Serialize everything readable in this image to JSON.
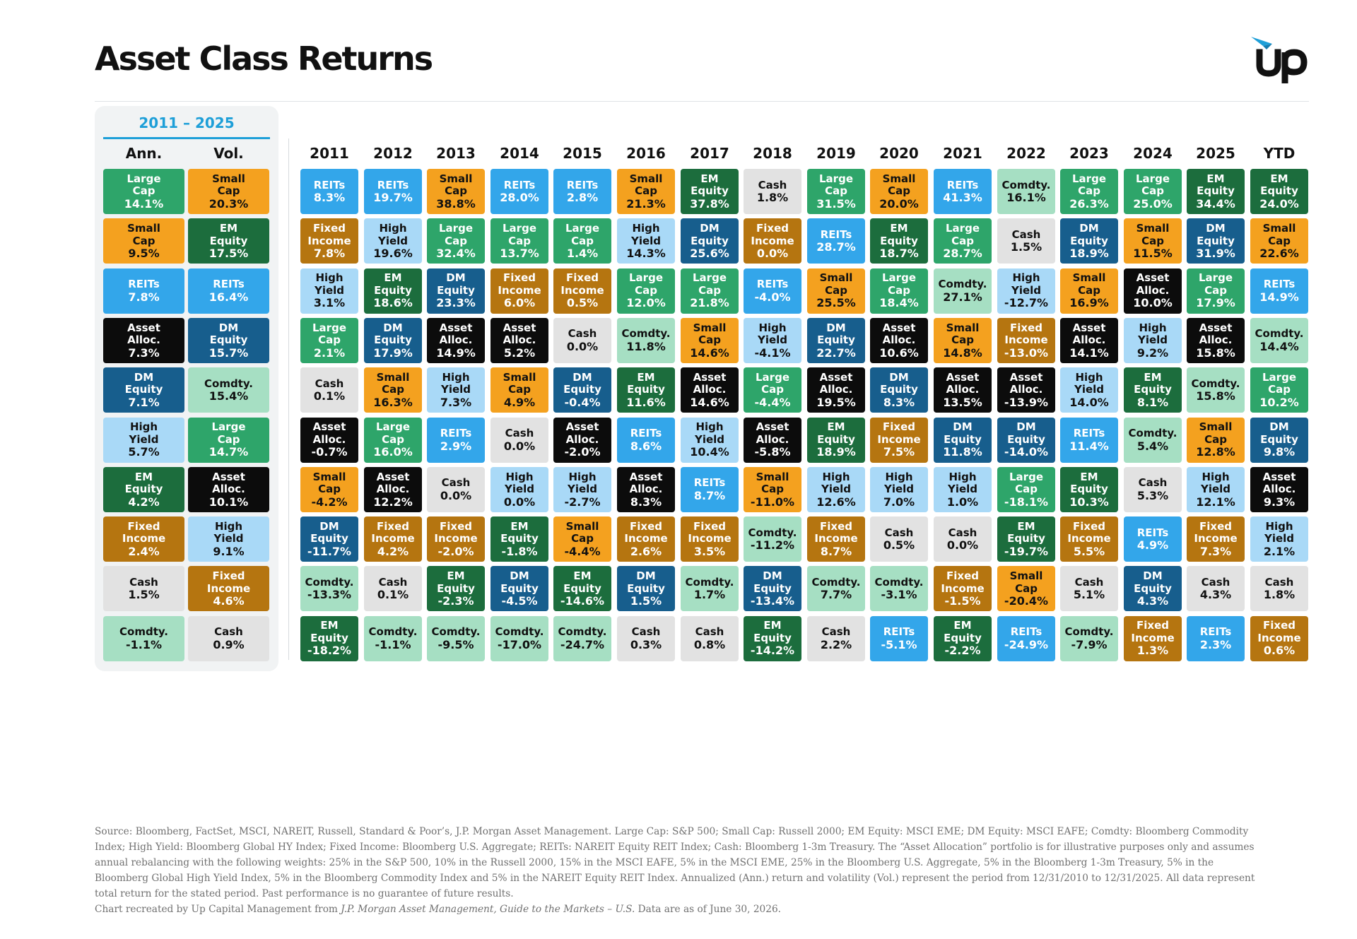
{
  "title": "Asset Class Returns",
  "period_label": "2011 – 2025",
  "colors": {
    "Large Cap": "#2ea56a",
    "Small Cap": "#f4a11f",
    "EM Equity": "#1c6d3d",
    "DM Equity": "#175e8d",
    "Comdty.": "#a6dfc3",
    "High Yield": "#a9d9f7",
    "Fixed Income": "#b57510",
    "REITs": "#33a6ea",
    "Cash": "#e2e2e2",
    "Asset Alloc.": "#0c0c0c"
  },
  "text_colors": {
    "Large Cap": "#ffffff",
    "Small Cap": "#111111",
    "EM Equity": "#ffffff",
    "DM Equity": "#ffffff",
    "Comdty.": "#111111",
    "High Yield": "#111111",
    "Fixed Income": "#ffffff",
    "REITs": "#ffffff",
    "Cash": "#111111",
    "Asset Alloc.": "#ffffff"
  },
  "chart_data": {
    "type": "table",
    "summary_headers": [
      "Ann.",
      "Vol."
    ],
    "summary": {
      "Ann.": [
        {
          "asset": "Large Cap",
          "value": "14.1%"
        },
        {
          "asset": "Small Cap",
          "value": "9.5%"
        },
        {
          "asset": "REITs",
          "value": "7.8%"
        },
        {
          "asset": "Asset Alloc.",
          "value": "7.3%"
        },
        {
          "asset": "DM Equity",
          "value": "7.1%"
        },
        {
          "asset": "High Yield",
          "value": "5.7%"
        },
        {
          "asset": "EM Equity",
          "value": "4.2%"
        },
        {
          "asset": "Fixed Income",
          "value": "2.4%"
        },
        {
          "asset": "Cash",
          "value": "1.5%"
        },
        {
          "asset": "Comdty.",
          "value": "-1.1%"
        }
      ],
      "Vol.": [
        {
          "asset": "Small Cap",
          "value": "20.3%"
        },
        {
          "asset": "EM Equity",
          "value": "17.5%"
        },
        {
          "asset": "REITs",
          "value": "16.4%"
        },
        {
          "asset": "DM Equity",
          "value": "15.7%"
        },
        {
          "asset": "Comdty.",
          "value": "15.4%"
        },
        {
          "asset": "Large Cap",
          "value": "14.7%"
        },
        {
          "asset": "Asset Alloc.",
          "value": "10.1%"
        },
        {
          "asset": "High Yield",
          "value": "9.1%"
        },
        {
          "asset": "Fixed Income",
          "value": "4.6%"
        },
        {
          "asset": "Cash",
          "value": "0.9%"
        }
      ]
    },
    "years": [
      {
        "label": "2011",
        "cells": [
          {
            "asset": "REITs",
            "value": "8.3%"
          },
          {
            "asset": "Fixed Income",
            "value": "7.8%"
          },
          {
            "asset": "High Yield",
            "value": "3.1%"
          },
          {
            "asset": "Large Cap",
            "value": "2.1%"
          },
          {
            "asset": "Cash",
            "value": "0.1%"
          },
          {
            "asset": "Asset Alloc.",
            "value": "-0.7%"
          },
          {
            "asset": "Small Cap",
            "value": "-4.2%"
          },
          {
            "asset": "DM Equity",
            "value": "-11.7%"
          },
          {
            "asset": "Comdty.",
            "value": "-13.3%"
          },
          {
            "asset": "EM Equity",
            "value": "-18.2%"
          }
        ]
      },
      {
        "label": "2012",
        "cells": [
          {
            "asset": "REITs",
            "value": "19.7%"
          },
          {
            "asset": "High Yield",
            "value": "19.6%"
          },
          {
            "asset": "EM Equity",
            "value": "18.6%"
          },
          {
            "asset": "DM Equity",
            "value": "17.9%"
          },
          {
            "asset": "Small Cap",
            "value": "16.3%"
          },
          {
            "asset": "Large Cap",
            "value": "16.0%"
          },
          {
            "asset": "Asset Alloc.",
            "value": "12.2%"
          },
          {
            "asset": "Fixed Income",
            "value": "4.2%"
          },
          {
            "asset": "Cash",
            "value": "0.1%"
          },
          {
            "asset": "Comdty.",
            "value": "-1.1%"
          }
        ]
      },
      {
        "label": "2013",
        "cells": [
          {
            "asset": "Small Cap",
            "value": "38.8%"
          },
          {
            "asset": "Large Cap",
            "value": "32.4%"
          },
          {
            "asset": "DM Equity",
            "value": "23.3%"
          },
          {
            "asset": "Asset Alloc.",
            "value": "14.9%"
          },
          {
            "asset": "High Yield",
            "value": "7.3%"
          },
          {
            "asset": "REITs",
            "value": "2.9%"
          },
          {
            "asset": "Cash",
            "value": "0.0%"
          },
          {
            "asset": "Fixed Income",
            "value": "-2.0%"
          },
          {
            "asset": "EM Equity",
            "value": "-2.3%"
          },
          {
            "asset": "Comdty.",
            "value": "-9.5%"
          }
        ]
      },
      {
        "label": "2014",
        "cells": [
          {
            "asset": "REITs",
            "value": "28.0%"
          },
          {
            "asset": "Large Cap",
            "value": "13.7%"
          },
          {
            "asset": "Fixed Income",
            "value": "6.0%"
          },
          {
            "asset": "Asset Alloc.",
            "value": "5.2%"
          },
          {
            "asset": "Small Cap",
            "value": "4.9%"
          },
          {
            "asset": "Cash",
            "value": "0.0%"
          },
          {
            "asset": "High Yield",
            "value": "0.0%"
          },
          {
            "asset": "EM Equity",
            "value": "-1.8%"
          },
          {
            "asset": "DM Equity",
            "value": "-4.5%"
          },
          {
            "asset": "Comdty.",
            "value": "-17.0%"
          }
        ]
      },
      {
        "label": "2015",
        "cells": [
          {
            "asset": "REITs",
            "value": "2.8%"
          },
          {
            "asset": "Large Cap",
            "value": "1.4%"
          },
          {
            "asset": "Fixed Income",
            "value": "0.5%"
          },
          {
            "asset": "Cash",
            "value": "0.0%"
          },
          {
            "asset": "DM Equity",
            "value": "-0.4%"
          },
          {
            "asset": "Asset Alloc.",
            "value": "-2.0%"
          },
          {
            "asset": "High Yield",
            "value": "-2.7%"
          },
          {
            "asset": "Small Cap",
            "value": "-4.4%"
          },
          {
            "asset": "EM Equity",
            "value": "-14.6%"
          },
          {
            "asset": "Comdty.",
            "value": "-24.7%"
          }
        ]
      },
      {
        "label": "2016",
        "cells": [
          {
            "asset": "Small Cap",
            "value": "21.3%"
          },
          {
            "asset": "High Yield",
            "value": "14.3%"
          },
          {
            "asset": "Large Cap",
            "value": "12.0%"
          },
          {
            "asset": "Comdty.",
            "value": "11.8%"
          },
          {
            "asset": "EM Equity",
            "value": "11.6%"
          },
          {
            "asset": "REITs",
            "value": "8.6%"
          },
          {
            "asset": "Asset Alloc.",
            "value": "8.3%"
          },
          {
            "asset": "Fixed Income",
            "value": "2.6%"
          },
          {
            "asset": "DM Equity",
            "value": "1.5%"
          },
          {
            "asset": "Cash",
            "value": "0.3%"
          }
        ]
      },
      {
        "label": "2017",
        "cells": [
          {
            "asset": "EM Equity",
            "value": "37.8%"
          },
          {
            "asset": "DM Equity",
            "value": "25.6%"
          },
          {
            "asset": "Large Cap",
            "value": "21.8%"
          },
          {
            "asset": "Small Cap",
            "value": "14.6%"
          },
          {
            "asset": "Asset Alloc.",
            "value": "14.6%"
          },
          {
            "asset": "High Yield",
            "value": "10.4%"
          },
          {
            "asset": "REITs",
            "value": "8.7%"
          },
          {
            "asset": "Fixed Income",
            "value": "3.5%"
          },
          {
            "asset": "Comdty.",
            "value": "1.7%"
          },
          {
            "asset": "Cash",
            "value": "0.8%"
          }
        ]
      },
      {
        "label": "2018",
        "cells": [
          {
            "asset": "Cash",
            "value": "1.8%"
          },
          {
            "asset": "Fixed Income",
            "value": "0.0%"
          },
          {
            "asset": "REITs",
            "value": "-4.0%"
          },
          {
            "asset": "High Yield",
            "value": "-4.1%"
          },
          {
            "asset": "Large Cap",
            "value": "-4.4%"
          },
          {
            "asset": "Asset Alloc.",
            "value": "-5.8%"
          },
          {
            "asset": "Small Cap",
            "value": "-11.0%"
          },
          {
            "asset": "Comdty.",
            "value": "-11.2%"
          },
          {
            "asset": "DM Equity",
            "value": "-13.4%"
          },
          {
            "asset": "EM Equity",
            "value": "-14.2%"
          }
        ]
      },
      {
        "label": "2019",
        "cells": [
          {
            "asset": "Large Cap",
            "value": "31.5%"
          },
          {
            "asset": "REITs",
            "value": "28.7%"
          },
          {
            "asset": "Small Cap",
            "value": "25.5%"
          },
          {
            "asset": "DM Equity",
            "value": "22.7%"
          },
          {
            "asset": "Asset Alloc.",
            "value": "19.5%"
          },
          {
            "asset": "EM Equity",
            "value": "18.9%"
          },
          {
            "asset": "High Yield",
            "value": "12.6%"
          },
          {
            "asset": "Fixed Income",
            "value": "8.7%"
          },
          {
            "asset": "Comdty.",
            "value": "7.7%"
          },
          {
            "asset": "Cash",
            "value": "2.2%"
          }
        ]
      },
      {
        "label": "2020",
        "cells": [
          {
            "asset": "Small Cap",
            "value": "20.0%"
          },
          {
            "asset": "EM Equity",
            "value": "18.7%"
          },
          {
            "asset": "Large Cap",
            "value": "18.4%"
          },
          {
            "asset": "Asset Alloc.",
            "value": "10.6%"
          },
          {
            "asset": "DM Equity",
            "value": "8.3%"
          },
          {
            "asset": "Fixed Income",
            "value": "7.5%"
          },
          {
            "asset": "High Yield",
            "value": "7.0%"
          },
          {
            "asset": "Cash",
            "value": "0.5%"
          },
          {
            "asset": "Comdty.",
            "value": "-3.1%"
          },
          {
            "asset": "REITs",
            "value": "-5.1%"
          }
        ]
      },
      {
        "label": "2021",
        "cells": [
          {
            "asset": "REITs",
            "value": "41.3%"
          },
          {
            "asset": "Large Cap",
            "value": "28.7%"
          },
          {
            "asset": "Comdty.",
            "value": "27.1%"
          },
          {
            "asset": "Small Cap",
            "value": "14.8%"
          },
          {
            "asset": "Asset Alloc.",
            "value": "13.5%"
          },
          {
            "asset": "DM Equity",
            "value": "11.8%"
          },
          {
            "asset": "High Yield",
            "value": "1.0%"
          },
          {
            "asset": "Cash",
            "value": "0.0%"
          },
          {
            "asset": "Fixed Income",
            "value": "-1.5%"
          },
          {
            "asset": "EM Equity",
            "value": "-2.2%"
          }
        ]
      },
      {
        "label": "2022",
        "cells": [
          {
            "asset": "Comdty.",
            "value": "16.1%"
          },
          {
            "asset": "Cash",
            "value": "1.5%"
          },
          {
            "asset": "High Yield",
            "value": "-12.7%"
          },
          {
            "asset": "Fixed Income",
            "value": "-13.0%"
          },
          {
            "asset": "Asset Alloc.",
            "value": "-13.9%"
          },
          {
            "asset": "DM Equity",
            "value": "-14.0%"
          },
          {
            "asset": "Large Cap",
            "value": "-18.1%"
          },
          {
            "asset": "EM Equity",
            "value": "-19.7%"
          },
          {
            "asset": "Small Cap",
            "value": "-20.4%"
          },
          {
            "asset": "REITs",
            "value": "-24.9%"
          }
        ]
      },
      {
        "label": "2023",
        "cells": [
          {
            "asset": "Large Cap",
            "value": "26.3%"
          },
          {
            "asset": "DM Equity",
            "value": "18.9%"
          },
          {
            "asset": "Small Cap",
            "value": "16.9%"
          },
          {
            "asset": "Asset Alloc.",
            "value": "14.1%"
          },
          {
            "asset": "High Yield",
            "value": "14.0%"
          },
          {
            "asset": "REITs",
            "value": "11.4%"
          },
          {
            "asset": "EM Equity",
            "value": "10.3%"
          },
          {
            "asset": "Fixed Income",
            "value": "5.5%"
          },
          {
            "asset": "Cash",
            "value": "5.1%"
          },
          {
            "asset": "Comdty.",
            "value": "-7.9%"
          }
        ]
      },
      {
        "label": "2024",
        "cells": [
          {
            "asset": "Large Cap",
            "value": "25.0%"
          },
          {
            "asset": "Small Cap",
            "value": "11.5%"
          },
          {
            "asset": "Asset Alloc.",
            "value": "10.0%"
          },
          {
            "asset": "High Yield",
            "value": "9.2%"
          },
          {
            "asset": "EM Equity",
            "value": "8.1%"
          },
          {
            "asset": "Comdty.",
            "value": "5.4%"
          },
          {
            "asset": "Cash",
            "value": "5.3%"
          },
          {
            "asset": "REITs",
            "value": "4.9%"
          },
          {
            "asset": "DM Equity",
            "value": "4.3%"
          },
          {
            "asset": "Fixed Income",
            "value": "1.3%"
          }
        ]
      },
      {
        "label": "2025",
        "cells": [
          {
            "asset": "EM Equity",
            "value": "34.4%"
          },
          {
            "asset": "DM Equity",
            "value": "31.9%"
          },
          {
            "asset": "Large Cap",
            "value": "17.9%"
          },
          {
            "asset": "Asset Alloc.",
            "value": "15.8%"
          },
          {
            "asset": "Comdty.",
            "value": "15.8%"
          },
          {
            "asset": "Small Cap",
            "value": "12.8%"
          },
          {
            "asset": "High Yield",
            "value": "12.1%"
          },
          {
            "asset": "Fixed Income",
            "value": "7.3%"
          },
          {
            "asset": "Cash",
            "value": "4.3%"
          },
          {
            "asset": "REITs",
            "value": "2.3%"
          }
        ]
      },
      {
        "label": "YTD",
        "cells": [
          {
            "asset": "EM Equity",
            "value": "24.0%"
          },
          {
            "asset": "Small Cap",
            "value": "22.6%"
          },
          {
            "asset": "REITs",
            "value": "14.9%"
          },
          {
            "asset": "Comdty.",
            "value": "14.4%"
          },
          {
            "asset": "Large Cap",
            "value": "10.2%"
          },
          {
            "asset": "DM Equity",
            "value": "9.8%"
          },
          {
            "asset": "Asset Alloc.",
            "value": "9.3%"
          },
          {
            "asset": "High Yield",
            "value": "2.1%"
          },
          {
            "asset": "Cash",
            "value": "1.8%"
          },
          {
            "asset": "Fixed Income",
            "value": "0.6%"
          }
        ]
      }
    ]
  },
  "footnote": {
    "text": "Source: Bloomberg, FactSet, MSCI, NAREIT, Russell, Standard & Poor’s, J.P. Morgan Asset Management. Large Cap: S&P 500; Small Cap: Russell 2000; EM Equity: MSCI EME; DM Equity: MSCI EAFE; Comdty: Bloomberg Commodity Index; High Yield: Bloomberg Global HY Index; Fixed Income: Bloomberg U.S. Aggregate; REITs: NAREIT Equity REIT Index; Cash: Bloomberg 1-3m Treasury. The “Asset Allocation” portfolio is for illustrative purposes only and assumes annual rebalancing with the following weights: 25% in the S&P 500, 10% in the Russell 2000, 15% in the MSCI EAFE, 5% in the MSCI EME, 25% in the Bloomberg U.S. Aggregate, 5% in the Bloomberg 1-3m Treasury, 5% in the Bloomberg Global High Yield Index, 5% in the Bloomberg Commodity Index and 5% in the NAREIT Equity REIT Index. Annualized (Ann.) return and volatility (Vol.) represent the period from 12/31/2010 to 12/31/2025. All data represent total return for the stated period. Past performance is no guarantee of future results.",
    "credit_prefix": "Chart recreated by Up Capital Management from ",
    "credit_source": "J.P. Morgan Asset Management, Guide to the Markets – U.S.",
    "credit_suffix": " Data are as of June 30, 2026."
  }
}
